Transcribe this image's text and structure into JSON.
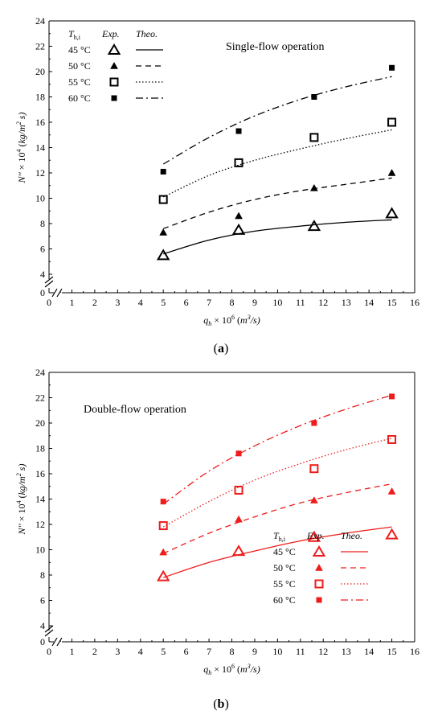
{
  "chart_data": [
    {
      "type": "scatter",
      "panel_label": "(a)",
      "annotation": "Single-flow operation",
      "xlabel": "q_h × 10^6 (m^3/s)",
      "ylabel": "N'' × 10^4 (kg/m^2 s)",
      "xlim": [
        0,
        16
      ],
      "ylim": [
        4,
        24
      ],
      "axis_break": true,
      "x_ticks": [
        0,
        1,
        2,
        3,
        4,
        5,
        6,
        7,
        8,
        9,
        10,
        11,
        12,
        13,
        14,
        15,
        16
      ],
      "y_ticks": [
        0,
        4,
        6,
        8,
        10,
        12,
        14,
        16,
        18,
        20,
        22,
        24
      ],
      "legend_header": {
        "group": "T_h,i",
        "exp": "Exp.",
        "theo": "Theo."
      },
      "legend_position": "top-left",
      "color": "#000000",
      "series": [
        {
          "name": "45 °C",
          "marker": "open-triangle",
          "line": "solid",
          "exp": {
            "x": [
              5,
              8.3,
              11.6,
              15
            ],
            "y": [
              5.5,
              7.5,
              7.8,
              8.8
            ]
          },
          "theo": {
            "x": [
              5,
              7,
              9,
              11,
              13,
              15
            ],
            "y": [
              5.6,
              6.7,
              7.4,
              7.8,
              8.1,
              8.3
            ]
          }
        },
        {
          "name": "50 °C",
          "marker": "filled-triangle",
          "line": "dash",
          "exp": {
            "x": [
              5,
              8.3,
              11.6,
              15
            ],
            "y": [
              7.3,
              8.6,
              10.8,
              12.0
            ]
          },
          "theo": {
            "x": [
              5,
              7,
              9,
              11,
              13,
              15
            ],
            "y": [
              7.6,
              8.9,
              9.9,
              10.6,
              11.1,
              11.6
            ]
          }
        },
        {
          "name": "55 °C",
          "marker": "open-square",
          "line": "dot",
          "exp": {
            "x": [
              5,
              8.3,
              11.6,
              15
            ],
            "y": [
              9.9,
              12.8,
              14.8,
              16.0
            ]
          },
          "theo": {
            "x": [
              5,
              7,
              9,
              11,
              13,
              15
            ],
            "y": [
              10.1,
              11.8,
              13.0,
              13.9,
              14.7,
              15.4
            ]
          }
        },
        {
          "name": "60 °C",
          "marker": "filled-square",
          "line": "dashdot",
          "exp": {
            "x": [
              5,
              8.3,
              11.6,
              15
            ],
            "y": [
              12.1,
              15.3,
              18.0,
              20.3
            ]
          },
          "theo": {
            "x": [
              5,
              7,
              9,
              11,
              13,
              15
            ],
            "y": [
              12.7,
              14.8,
              16.5,
              17.8,
              18.8,
              19.6
            ]
          }
        }
      ]
    },
    {
      "type": "scatter",
      "panel_label": "(b)",
      "annotation": "Double-flow operation",
      "xlabel": "q_h × 10^6 (m^3/s)",
      "ylabel": "N'' × 10^4 (kg/m^2 s)",
      "xlim": [
        0,
        16
      ],
      "ylim": [
        4,
        24
      ],
      "axis_break": true,
      "x_ticks": [
        0,
        1,
        2,
        3,
        4,
        5,
        6,
        7,
        8,
        9,
        10,
        11,
        12,
        13,
        14,
        15,
        16
      ],
      "y_ticks": [
        0,
        4,
        6,
        8,
        10,
        12,
        14,
        16,
        18,
        20,
        22,
        24
      ],
      "legend_header": {
        "group": "T_h,i",
        "exp": "Exp.",
        "theo": "Theo."
      },
      "legend_position": "bottom-right",
      "color": "#ee1c1c",
      "series": [
        {
          "name": "45 °C",
          "marker": "open-triangle",
          "line": "solid",
          "exp": {
            "x": [
              5,
              8.3,
              11.6,
              15
            ],
            "y": [
              7.9,
              9.9,
              11.0,
              11.2
            ]
          },
          "theo": {
            "x": [
              5,
              7,
              9,
              11,
              13,
              15
            ],
            "y": [
              7.8,
              9.0,
              9.9,
              10.7,
              11.3,
              11.8
            ]
          }
        },
        {
          "name": "50 °C",
          "marker": "filled-triangle",
          "line": "dash",
          "exp": {
            "x": [
              5,
              8.3,
              11.6,
              15
            ],
            "y": [
              9.8,
              12.4,
              13.9,
              14.6
            ]
          },
          "theo": {
            "x": [
              5,
              7,
              9,
              11,
              13,
              15
            ],
            "y": [
              9.7,
              11.3,
              12.6,
              13.7,
              14.5,
              15.2
            ]
          }
        },
        {
          "name": "55 °C",
          "marker": "open-square",
          "line": "dot",
          "exp": {
            "x": [
              5,
              8.3,
              11.6,
              15
            ],
            "y": [
              11.9,
              14.7,
              16.4,
              18.7
            ]
          },
          "theo": {
            "x": [
              5,
              7,
              9,
              11,
              13,
              15
            ],
            "y": [
              11.8,
              13.8,
              15.5,
              16.8,
              17.9,
              18.8
            ]
          }
        },
        {
          "name": "60 °C",
          "marker": "filled-square",
          "line": "dashdot",
          "exp": {
            "x": [
              5,
              8.3,
              11.6,
              15
            ],
            "y": [
              13.8,
              17.6,
              20.0,
              22.1
            ]
          },
          "theo": {
            "x": [
              5,
              7,
              9,
              11,
              13,
              15
            ],
            "y": [
              13.6,
              16.2,
              18.2,
              19.8,
              21.1,
              22.2
            ]
          }
        }
      ]
    }
  ]
}
